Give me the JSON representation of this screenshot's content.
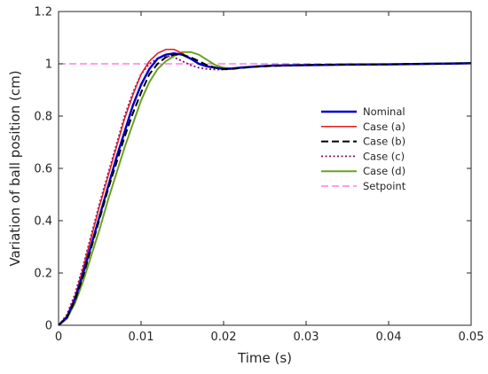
{
  "chart_data": {
    "type": "line",
    "title": "",
    "xlabel": "Time (s)",
    "ylabel": "Variation of ball position (cm)",
    "xlim": [
      0,
      0.05
    ],
    "ylim": [
      0,
      1.2
    ],
    "xticks": [
      0,
      0.01,
      0.02,
      0.03,
      0.04,
      0.05
    ],
    "xtick_labels": [
      "0",
      "0.01",
      "0.02",
      "0.03",
      "0.04",
      "0.05"
    ],
    "yticks": [
      0,
      0.2,
      0.4,
      0.6,
      0.8,
      1,
      1.2
    ],
    "ytick_labels": [
      "0",
      "0.2",
      "0.4",
      "0.6",
      "0.8",
      "1",
      "1.2"
    ],
    "grid": false,
    "legend_position": "center-right",
    "series": [
      {
        "name": "Nominal",
        "color": "#0000cc",
        "dash": "solid",
        "width": 2.5,
        "x": [
          0,
          0.001,
          0.002,
          0.003,
          0.004,
          0.005,
          0.006,
          0.007,
          0.008,
          0.009,
          0.01,
          0.011,
          0.012,
          0.013,
          0.014,
          0.015,
          0.016,
          0.017,
          0.018,
          0.019,
          0.02,
          0.021,
          0.022,
          0.024,
          0.026,
          0.03,
          0.035,
          0.04,
          0.045,
          0.05
        ],
        "y": [
          0,
          0.03,
          0.1,
          0.2,
          0.31,
          0.42,
          0.53,
          0.64,
          0.74,
          0.84,
          0.92,
          0.98,
          1.02,
          1.035,
          1.04,
          1.035,
          1.02,
          1.0,
          0.99,
          0.985,
          0.98,
          0.982,
          0.985,
          0.99,
          0.993,
          0.995,
          0.997,
          0.998,
          1.0,
          1.002
        ]
      },
      {
        "name": "Case (a)",
        "color": "#e31a1c",
        "dash": "solid",
        "width": 1.5,
        "x": [
          0,
          0.001,
          0.002,
          0.003,
          0.004,
          0.005,
          0.006,
          0.007,
          0.008,
          0.009,
          0.01,
          0.011,
          0.012,
          0.013,
          0.014,
          0.015,
          0.016,
          0.017,
          0.018,
          0.019,
          0.02,
          0.021,
          0.022,
          0.024,
          0.026,
          0.03,
          0.035,
          0.04,
          0.045,
          0.05
        ],
        "y": [
          0,
          0.035,
          0.11,
          0.22,
          0.34,
          0.46,
          0.57,
          0.68,
          0.79,
          0.88,
          0.96,
          1.01,
          1.04,
          1.055,
          1.055,
          1.04,
          1.02,
          1.0,
          0.99,
          0.985,
          0.982,
          0.983,
          0.986,
          0.99,
          0.993,
          0.995,
          0.997,
          0.998,
          1.0,
          1.002
        ]
      },
      {
        "name": "Case (b)",
        "color": "#000000",
        "dash": "dashed",
        "width": 2,
        "x": [
          0,
          0.001,
          0.002,
          0.003,
          0.004,
          0.005,
          0.006,
          0.007,
          0.008,
          0.009,
          0.01,
          0.011,
          0.012,
          0.013,
          0.014,
          0.015,
          0.016,
          0.017,
          0.018,
          0.019,
          0.02,
          0.021,
          0.022,
          0.024,
          0.026,
          0.03,
          0.035,
          0.04,
          0.045,
          0.05
        ],
        "y": [
          0,
          0.028,
          0.095,
          0.19,
          0.3,
          0.41,
          0.52,
          0.62,
          0.72,
          0.81,
          0.89,
          0.96,
          1.0,
          1.025,
          1.035,
          1.035,
          1.025,
          1.01,
          0.995,
          0.985,
          0.98,
          0.98,
          0.984,
          0.989,
          0.992,
          0.995,
          0.997,
          0.998,
          1.0,
          1.002
        ]
      },
      {
        "name": "Case (c)",
        "color": "#7b1070",
        "dash": "dotted",
        "width": 1.8,
        "x": [
          0,
          0.001,
          0.002,
          0.003,
          0.004,
          0.005,
          0.006,
          0.007,
          0.008,
          0.009,
          0.01,
          0.011,
          0.012,
          0.013,
          0.014,
          0.015,
          0.016,
          0.017,
          0.018,
          0.019,
          0.02,
          0.021,
          0.022,
          0.024,
          0.026,
          0.03,
          0.035,
          0.04,
          0.045,
          0.05
        ],
        "y": [
          0,
          0.04,
          0.12,
          0.23,
          0.35,
          0.47,
          0.58,
          0.69,
          0.8,
          0.89,
          0.96,
          1.0,
          1.02,
          1.03,
          1.025,
          1.01,
          0.995,
          0.985,
          0.98,
          0.978,
          0.978,
          0.98,
          0.985,
          0.99,
          0.993,
          0.995,
          0.997,
          0.998,
          1.0,
          1.002
        ]
      },
      {
        "name": "Case (d)",
        "color": "#6aa121",
        "dash": "solid",
        "width": 2,
        "x": [
          0,
          0.001,
          0.002,
          0.003,
          0.004,
          0.005,
          0.006,
          0.007,
          0.008,
          0.009,
          0.01,
          0.011,
          0.012,
          0.013,
          0.014,
          0.015,
          0.016,
          0.017,
          0.018,
          0.019,
          0.02,
          0.021,
          0.022,
          0.024,
          0.026,
          0.03,
          0.035,
          0.04,
          0.045,
          0.05
        ],
        "y": [
          0,
          0.025,
          0.085,
          0.17,
          0.27,
          0.37,
          0.48,
          0.58,
          0.68,
          0.77,
          0.86,
          0.93,
          0.98,
          1.01,
          1.03,
          1.045,
          1.045,
          1.035,
          1.015,
          0.995,
          0.985,
          0.982,
          0.985,
          0.99,
          0.993,
          0.995,
          0.997,
          0.998,
          1.001,
          1.003
        ]
      },
      {
        "name": "Setpoint",
        "color": "#ff66dd",
        "dash": "dashed",
        "width": 1.2,
        "x": [
          0,
          0.05
        ],
        "y": [
          1,
          1
        ]
      }
    ]
  }
}
